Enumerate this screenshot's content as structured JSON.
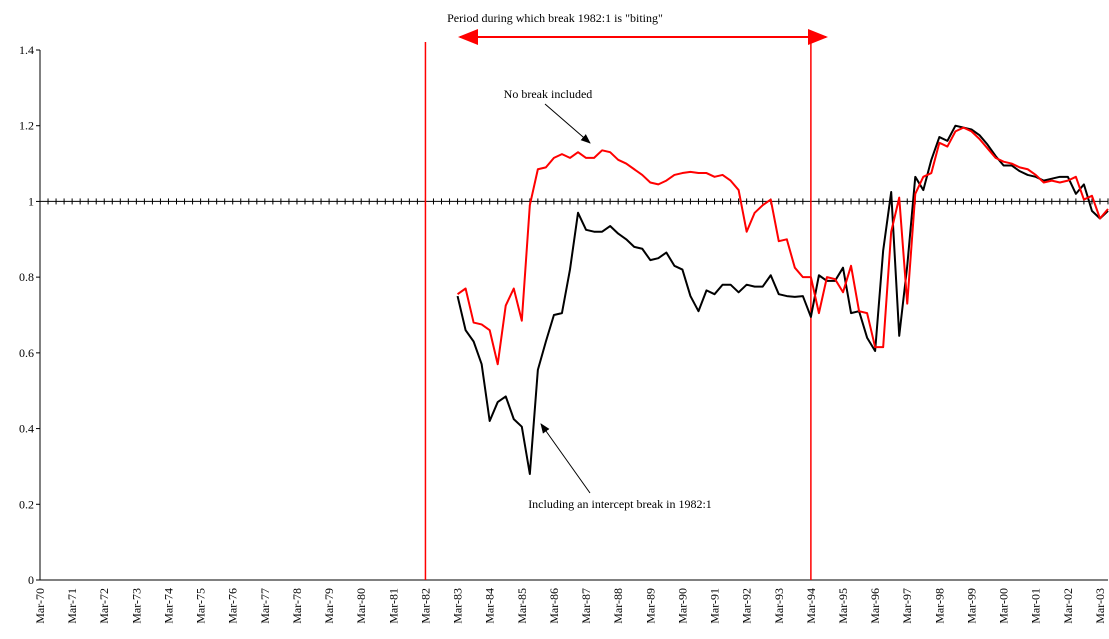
{
  "chart_data": {
    "type": "line",
    "categories": [
      "Mar-70",
      null,
      null,
      null,
      "Mar-71",
      null,
      null,
      null,
      "Mar-72",
      null,
      null,
      null,
      "Mar-73",
      null,
      null,
      null,
      "Mar-74",
      null,
      null,
      null,
      "Mar-75",
      null,
      null,
      null,
      "Mar-76",
      null,
      null,
      null,
      "Mar-77",
      null,
      null,
      null,
      "Mar-78",
      null,
      null,
      null,
      "Mar-79",
      null,
      null,
      null,
      "Mar-80",
      null,
      null,
      null,
      "Mar-81",
      null,
      null,
      null,
      "Mar-82",
      null,
      null,
      null,
      "Mar-83",
      null,
      null,
      null,
      "Mar-84",
      null,
      null,
      null,
      "Mar-85",
      null,
      null,
      null,
      "Mar-86",
      null,
      null,
      null,
      "Mar-87",
      null,
      null,
      null,
      "Mar-88",
      null,
      null,
      null,
      "Mar-89",
      null,
      null,
      null,
      "Mar-90",
      null,
      null,
      null,
      "Mar-91",
      null,
      null,
      null,
      "Mar-92",
      null,
      null,
      null,
      "Mar-93",
      null,
      null,
      null,
      "Mar-94",
      null,
      null,
      null,
      "Mar-95",
      null,
      null,
      null,
      "Mar-96",
      null,
      null,
      null,
      "Mar-97",
      null,
      null,
      null,
      "Mar-98",
      null,
      null,
      null,
      "Mar-99",
      null,
      null,
      null,
      "Mar-00",
      null,
      null,
      null,
      "Mar-01",
      null,
      null,
      null,
      "Mar-02",
      null,
      null,
      null,
      "Mar-03",
      null
    ],
    "series": [
      {
        "name": "Including an intercept break in 1982:1",
        "color": "#000000",
        "values": [
          null,
          null,
          null,
          null,
          null,
          null,
          null,
          null,
          null,
          null,
          null,
          null,
          null,
          null,
          null,
          null,
          null,
          null,
          null,
          null,
          null,
          null,
          null,
          null,
          null,
          null,
          null,
          null,
          null,
          null,
          null,
          null,
          null,
          null,
          null,
          null,
          null,
          null,
          null,
          null,
          null,
          null,
          null,
          null,
          null,
          null,
          null,
          null,
          null,
          null,
          null,
          null,
          0.75,
          0.66,
          0.63,
          0.57,
          0.42,
          0.47,
          0.485,
          0.425,
          0.405,
          0.28,
          0.555,
          0.63,
          0.7,
          0.705,
          0.82,
          0.97,
          0.925,
          0.92,
          0.92,
          0.935,
          0.915,
          0.9,
          0.88,
          0.875,
          0.845,
          0.85,
          0.865,
          0.83,
          0.82,
          0.75,
          0.71,
          0.765,
          0.755,
          0.78,
          0.78,
          0.76,
          0.78,
          0.775,
          0.775,
          0.805,
          0.755,
          0.75,
          0.748,
          0.75,
          0.695,
          0.805,
          0.79,
          0.79,
          0.825,
          0.705,
          0.71,
          0.64,
          0.605,
          0.87,
          1.025,
          0.645,
          0.83,
          1.065,
          1.03,
          1.11,
          1.17,
          1.16,
          1.2,
          1.195,
          1.19,
          1.175,
          1.15,
          1.12,
          1.095,
          1.095,
          1.08,
          1.07,
          1.065,
          1.055,
          1.06,
          1.065,
          1.065,
          1.02,
          1.045,
          0.975,
          0.955,
          0.975
        ]
      },
      {
        "name": "No break included",
        "color": "#ff0000",
        "values": [
          null,
          null,
          null,
          null,
          null,
          null,
          null,
          null,
          null,
          null,
          null,
          null,
          null,
          null,
          null,
          null,
          null,
          null,
          null,
          null,
          null,
          null,
          null,
          null,
          null,
          null,
          null,
          null,
          null,
          null,
          null,
          null,
          null,
          null,
          null,
          null,
          null,
          null,
          null,
          null,
          null,
          null,
          null,
          null,
          null,
          null,
          null,
          null,
          null,
          null,
          null,
          null,
          0.755,
          0.77,
          0.68,
          0.675,
          0.66,
          0.57,
          0.725,
          0.77,
          0.685,
          0.99,
          1.085,
          1.09,
          1.115,
          1.125,
          1.115,
          1.13,
          1.115,
          1.115,
          1.135,
          1.13,
          1.11,
          1.1,
          1.085,
          1.07,
          1.05,
          1.045,
          1.055,
          1.07,
          1.075,
          1.078,
          1.075,
          1.075,
          1.065,
          1.07,
          1.055,
          1.03,
          0.92,
          0.97,
          0.99,
          1.005,
          0.895,
          0.9,
          0.825,
          0.8,
          0.8,
          0.705,
          0.8,
          0.795,
          0.76,
          0.83,
          0.71,
          0.705,
          0.615,
          0.615,
          0.92,
          1.01,
          0.73,
          1.02,
          1.065,
          1.075,
          1.155,
          1.145,
          1.185,
          1.195,
          1.185,
          1.165,
          1.14,
          1.115,
          1.105,
          1.1,
          1.09,
          1.085,
          1.07,
          1.05,
          1.055,
          1.05,
          1.055,
          1.065,
          1.005,
          1.015,
          0.955,
          0.98
        ]
      }
    ],
    "ylim": [
      0,
      1.4
    ],
    "yticks": [
      0,
      0.2,
      0.4,
      0.6,
      0.8,
      1,
      1.2,
      1.4
    ],
    "x_axis_crosses": 1,
    "grid": false,
    "break_period": {
      "label": "Period during which break 1982:1 is \"biting\"",
      "start": "Mar-82",
      "end": "Mar-94",
      "color": "#ff0000"
    }
  }
}
